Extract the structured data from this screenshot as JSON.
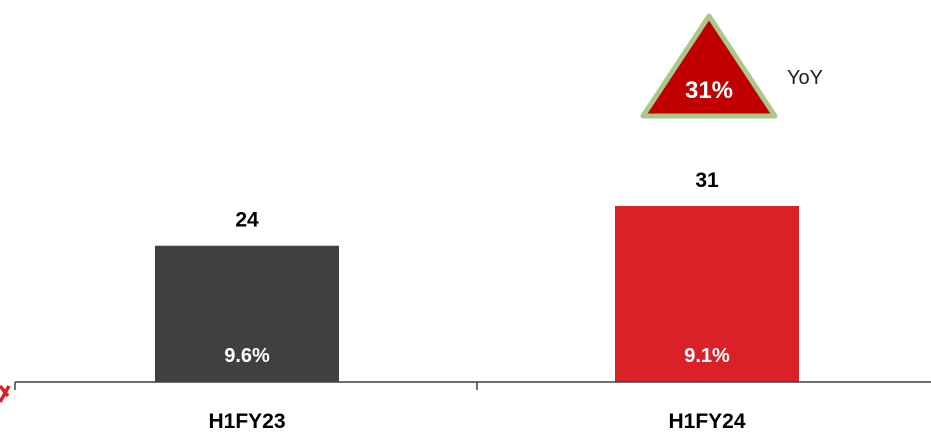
{
  "chart_data": {
    "type": "bar",
    "categories": [
      "H1FY23",
      "H1FY24"
    ],
    "values": [
      24,
      31
    ],
    "inner_labels": [
      "9.6%",
      "9.1%"
    ],
    "bar_colors": [
      "#404040",
      "#DA2128"
    ],
    "ylim": [
      0,
      38
    ],
    "grid": false,
    "title": "",
    "xlabel": "",
    "ylabel": "",
    "callout": {
      "value": "31%",
      "label": "YoY",
      "fill_color": "#C00000",
      "border_color": "#A9C98A"
    },
    "edge_mark_color": "#DA2128"
  }
}
